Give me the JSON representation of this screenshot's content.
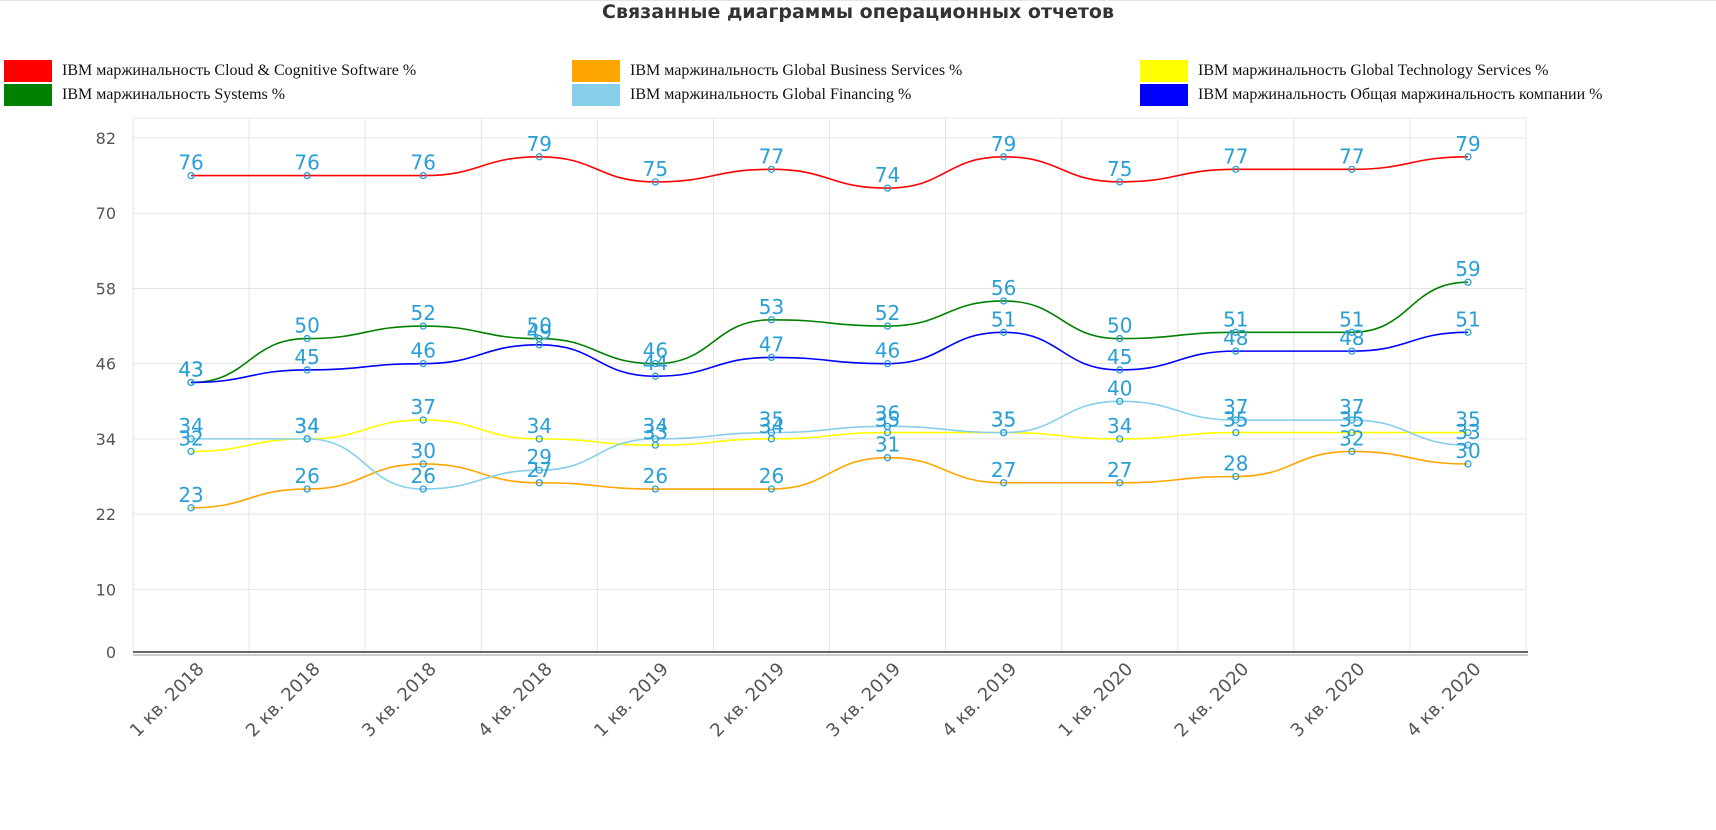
{
  "title": "Связанные диаграммы операционных отчетов",
  "chart_data": {
    "type": "line",
    "title": "Связанные диаграммы операционных отчетов",
    "categories": [
      "1 кв. 2018",
      "2 кв. 2018",
      "3 кв. 2018",
      "4 кв. 2018",
      "1 кв. 2019",
      "2 кв. 2019",
      "3 кв. 2019",
      "4 кв. 2019",
      "1 кв. 2020",
      "2 кв. 2020",
      "3 кв. 2020",
      "4 кв. 2020"
    ],
    "y_ticks": [
      0,
      10,
      22,
      34,
      46,
      58,
      70,
      82
    ],
    "ylim": [
      0,
      82
    ],
    "grid": true,
    "legend_position": "top",
    "label_color": "#2a9fd6",
    "point_color": "#2a9fd6",
    "series": [
      {
        "name": "IBM маржинальность Cloud & Cognitive Software %",
        "color": "#ff0000",
        "values": [
          76,
          76,
          76,
          79,
          75,
          77,
          74,
          79,
          75,
          77,
          77,
          79
        ]
      },
      {
        "name": "IBM маржинальность Global Business Services %",
        "color": "#ffa500",
        "values": [
          23,
          26,
          30,
          27,
          26,
          26,
          31,
          27,
          27,
          28,
          32,
          30
        ]
      },
      {
        "name": "IBM маржинальность Global Technology Services %",
        "color": "#ffff00",
        "values": [
          32,
          34,
          37,
          34,
          33,
          34,
          35,
          35,
          34,
          35,
          35,
          35
        ]
      },
      {
        "name": "IBM маржинальность Systems %",
        "color": "#008000",
        "values": [
          43,
          50,
          52,
          50,
          46,
          53,
          52,
          56,
          50,
          51,
          51,
          59
        ]
      },
      {
        "name": "IBM маржинальность Global Financing %",
        "color": "#87ceeb",
        "values": [
          34,
          34,
          26,
          29,
          34,
          35,
          36,
          35,
          40,
          37,
          37,
          33
        ]
      },
      {
        "name": "IBM маржинальность Общая маржинальность компании %",
        "color": "#0000ff",
        "values": [
          43,
          45,
          46,
          49,
          44,
          47,
          46,
          51,
          45,
          48,
          48,
          51
        ]
      }
    ]
  }
}
